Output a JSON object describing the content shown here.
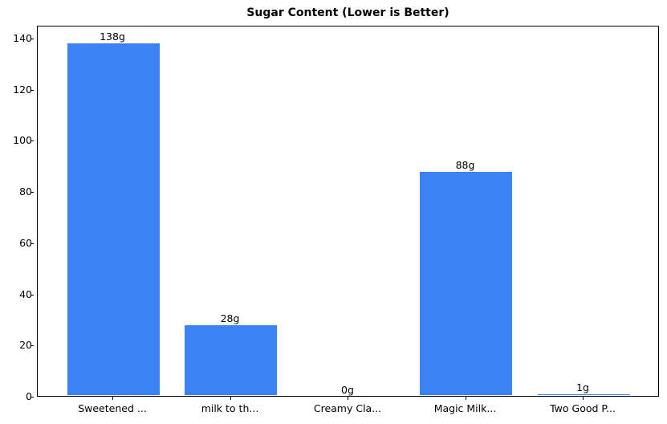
{
  "chart_data": {
    "type": "bar",
    "title": "Sugar Content (Lower is Better)",
    "xlabel": "",
    "ylabel": "",
    "categories": [
      "Sweetened ...",
      "milk to th...",
      "Creamy Cla...",
      "Magic Milk...",
      "Two Good P..."
    ],
    "values": [
      138,
      28,
      0,
      88,
      1
    ],
    "data_labels": [
      "138g",
      "28g",
      "0g",
      "88g",
      "1g"
    ],
    "ylim": [
      0,
      145
    ],
    "yticks": [
      0,
      20,
      40,
      60,
      80,
      100,
      120,
      140
    ],
    "grid": false,
    "legend": null,
    "bar_color": "#3b82f6"
  }
}
